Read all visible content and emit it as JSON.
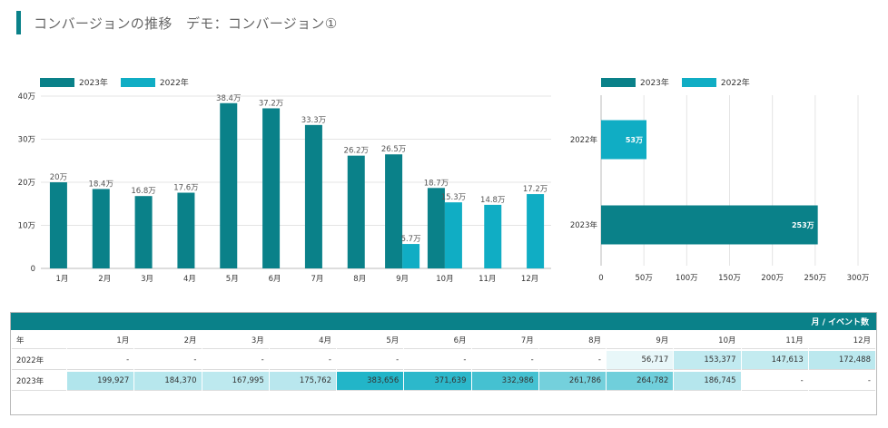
{
  "header": {
    "title": "コンバージョンの推移　デモ：コンバージョン①"
  },
  "colors": {
    "y2023": "#0a8189",
    "y2022": "#10adc4",
    "accent": "#0a8189"
  },
  "legend": [
    {
      "label": "2023年",
      "color": "#0a8189"
    },
    {
      "label": "2022年",
      "color": "#10adc4"
    }
  ],
  "chart_data": [
    {
      "type": "bar",
      "categories": [
        "1月",
        "2月",
        "3月",
        "4月",
        "5月",
        "6月",
        "7月",
        "8月",
        "9月",
        "10月",
        "11月",
        "12月"
      ],
      "series": [
        {
          "name": "2023年",
          "values": [
            199927,
            184370,
            167995,
            175762,
            383656,
            371639,
            332986,
            261786,
            264782,
            186745,
            null,
            null
          ]
        },
        {
          "name": "2022年",
          "values": [
            null,
            null,
            null,
            null,
            null,
            null,
            null,
            null,
            56717,
            153377,
            147613,
            172488
          ]
        }
      ],
      "data_labels": {
        "2023年": [
          "20万",
          "18.4万",
          "16.8万",
          "17.6万",
          "38.4万",
          "37.2万",
          "33.3万",
          "26.2万",
          "26.5万",
          "18.7万",
          "",
          ""
        ],
        "2022年": [
          "",
          "",
          "",
          "",
          "",
          "",
          "",
          "",
          "5.7万",
          "15.3万",
          "14.8万",
          "17.2万"
        ]
      },
      "yticks": [
        "0",
        "10万",
        "20万",
        "30万",
        "40万"
      ],
      "ylim": [
        0,
        400000
      ],
      "grid": true,
      "legend_position": "top-left"
    },
    {
      "type": "bar",
      "orientation": "horizontal",
      "categories": [
        "2022年",
        "2023年"
      ],
      "series": [
        {
          "name": "2022年",
          "values": [
            530000,
            null
          ],
          "label": "53万"
        },
        {
          "name": "2023年",
          "values": [
            null,
            2530000
          ],
          "label": "253万"
        }
      ],
      "xticks": [
        "0",
        "50万",
        "100万",
        "150万",
        "200万",
        "250万",
        "300万"
      ],
      "xlim": [
        0,
        3000000
      ],
      "grid": true,
      "legend_position": "top-left"
    }
  ],
  "table": {
    "title": "月 / イベント数",
    "year_header": "年",
    "months": [
      "1月",
      "2月",
      "3月",
      "4月",
      "5月",
      "6月",
      "7月",
      "8月",
      "9月",
      "10月",
      "11月",
      "12月"
    ],
    "rows": [
      {
        "year": "2022年",
        "cells": [
          "-",
          "-",
          "-",
          "-",
          "-",
          "-",
          "-",
          "-",
          "56,717",
          "153,377",
          "147,613",
          "172,488"
        ],
        "levels": [
          0,
          0,
          0,
          0,
          0,
          0,
          0,
          0,
          0.03,
          0.22,
          0.21,
          0.25
        ]
      },
      {
        "year": "2023年",
        "cells": [
          "199,927",
          "184,370",
          "167,995",
          "175,762",
          "383,656",
          "371,639",
          "332,986",
          "261,786",
          "264,782",
          "186,745",
          "-",
          "-"
        ],
        "levels": [
          0.3,
          0.27,
          0.24,
          0.26,
          1.0,
          0.95,
          0.83,
          0.6,
          0.62,
          0.28,
          0,
          0
        ]
      }
    ]
  }
}
